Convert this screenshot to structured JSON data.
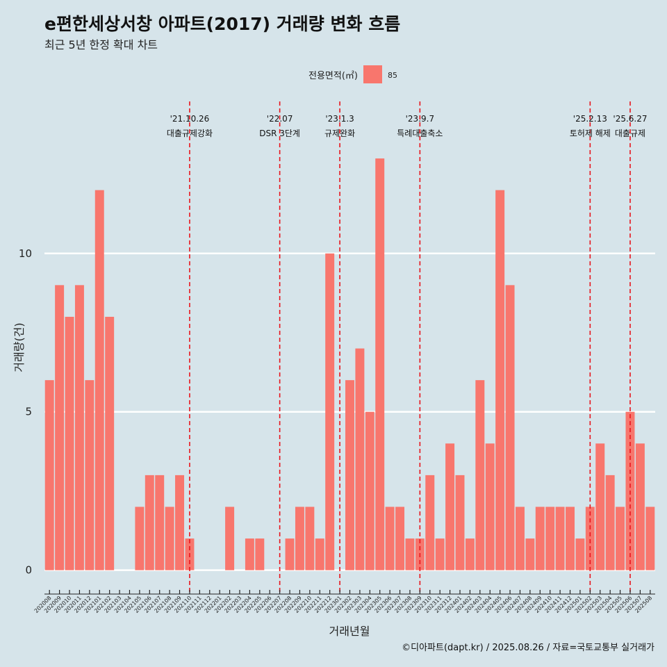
{
  "title": "e편한세상서창 아파트(2017) 거래량 변화 흐름",
  "subtitle": "최근 5년 한정 확대 차트",
  "caption": "©디아파트(dapt.kr) / 2025.08.26 / 자료=국토교통부 실거래가",
  "colors": {
    "bar": "#f8766d",
    "event_line": "#e8141c",
    "background": "#d6e4ea",
    "grid": "#ffffff"
  },
  "chart_data": {
    "type": "bar",
    "xlabel": "거래년월",
    "ylabel": "거래량(건)",
    "ylim": [
      -0.6,
      14.8
    ],
    "yticks": [
      0,
      5,
      10
    ],
    "grid": true,
    "legend": {
      "title": "전용면적(㎡)",
      "placement": "top",
      "entries": [
        "85"
      ]
    },
    "categories": [
      "202008",
      "202009",
      "202010",
      "202011",
      "202012",
      "202101",
      "202102",
      "202103",
      "202104",
      "202105",
      "202106",
      "202107",
      "202108",
      "202109",
      "202110",
      "202111",
      "202112",
      "202201",
      "202202",
      "202203",
      "202204",
      "202205",
      "202206",
      "202207",
      "202208",
      "202209",
      "202210",
      "202211",
      "202212",
      "202301",
      "202302",
      "202303",
      "202304",
      "202305",
      "202306",
      "202307",
      "202308",
      "202309",
      "202310",
      "202311",
      "202312",
      "202401",
      "202402",
      "202403",
      "202404",
      "202405",
      "202406",
      "202407",
      "202408",
      "202409",
      "202410",
      "202411",
      "202412",
      "202501",
      "202502",
      "202503",
      "202504",
      "202505",
      "202506",
      "202507",
      "202508"
    ],
    "series": [
      {
        "name": "85",
        "values": [
          6,
          9,
          8,
          9,
          6,
          12,
          8,
          0,
          0,
          2,
          3,
          3,
          2,
          3,
          1,
          0,
          0,
          0,
          2,
          0,
          1,
          1,
          0,
          0,
          1,
          2,
          2,
          1,
          10,
          0,
          6,
          7,
          5,
          13,
          2,
          2,
          1,
          1,
          3,
          1,
          4,
          3,
          1,
          6,
          4,
          12,
          9,
          2,
          1,
          2,
          2,
          2,
          2,
          1,
          2,
          4,
          3,
          2,
          5,
          4,
          2
        ]
      }
    ],
    "events": [
      {
        "category": "202110",
        "date": "'21.10.26",
        "label": "대출규제강화"
      },
      {
        "category": "202207",
        "date": "'22.07",
        "label": "DSR 3단계"
      },
      {
        "category": "202301",
        "date": "'23.1.3",
        "label": "규제완화"
      },
      {
        "category": "202309",
        "date": "'23.9.7",
        "label": "특례대출축소"
      },
      {
        "category": "202502",
        "date": "'25.2.13",
        "label": "토허제 해제"
      },
      {
        "category": "202506",
        "date": "'25.6.27",
        "label": "대출규제"
      }
    ]
  }
}
